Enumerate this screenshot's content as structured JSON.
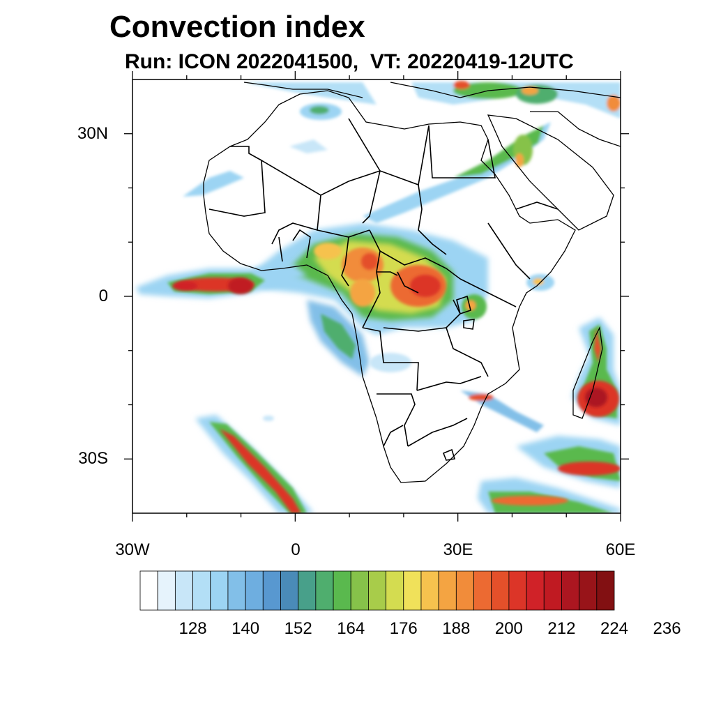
{
  "title": "Convection index",
  "subtitle": "Run: ICON 2022041500,  VT: 20220419-12UTC",
  "map": {
    "lon_range": [
      -30,
      60
    ],
    "lat_range": [
      -40,
      40
    ],
    "lat_ticks": [
      {
        "lat": 30,
        "label": "30N"
      },
      {
        "lat": 0,
        "label": "0"
      },
      {
        "lat": -30,
        "label": "30S"
      }
    ],
    "lon_ticks": [
      {
        "lon": -30,
        "label": "30W"
      },
      {
        "lon": 0,
        "label": "0"
      },
      {
        "lon": 30,
        "label": "30E"
      },
      {
        "lon": 60,
        "label": "60E"
      }
    ]
  },
  "colorbar": {
    "colors": [
      "#ffffff",
      "#e6f3fc",
      "#c8e6f8",
      "#b3dff6",
      "#9cd4f3",
      "#82bfe8",
      "#6eaee0",
      "#5898d0",
      "#4a8bb8",
      "#48a08a",
      "#4fae6e",
      "#5ab94e",
      "#86c24a",
      "#a8cc4a",
      "#d4dc50",
      "#f0e15a",
      "#f6c24e",
      "#f4a442",
      "#f18c3a",
      "#ec6a32",
      "#e4502a",
      "#dc3528",
      "#d02228",
      "#c01a22",
      "#ac1620",
      "#981419",
      "#821012"
    ],
    "tick_labels": [
      "128",
      "140",
      "152",
      "164",
      "176",
      "188",
      "200",
      "212",
      "224",
      "236"
    ]
  }
}
